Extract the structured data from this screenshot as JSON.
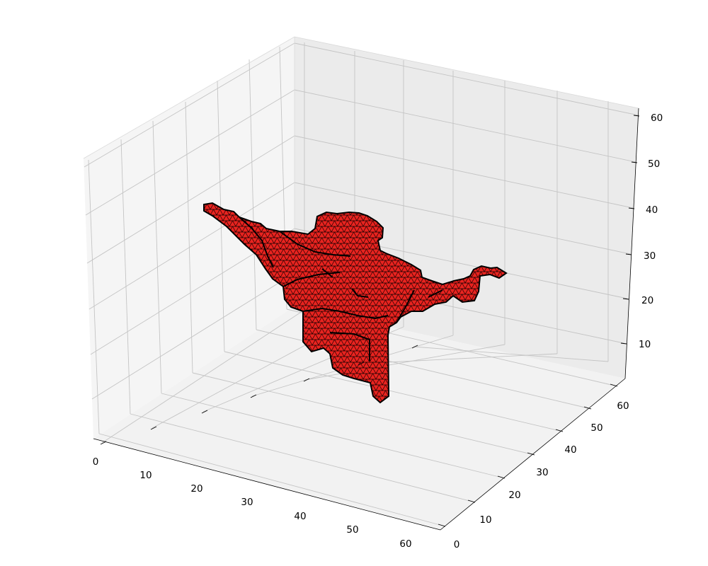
{
  "chart_data": {
    "type": "surface3d",
    "title": "",
    "xlabel": "",
    "ylabel": "",
    "zlabel": "",
    "xlim": [
      0,
      64
    ],
    "ylim": [
      0,
      64
    ],
    "zlim": [
      2,
      62
    ],
    "x_ticks": [
      "0",
      "10",
      "20",
      "30",
      "40",
      "50",
      "60"
    ],
    "y_ticks": [
      "0",
      "10",
      "20",
      "30",
      "40",
      "50",
      "60"
    ],
    "z_ticks": [
      "10",
      "20",
      "30",
      "40",
      "50",
      "60"
    ],
    "grid": true,
    "pane_color": "#f2f2f2",
    "surface_facecolor": "#e8231f",
    "surface_edgecolor": "#000000",
    "surface_description": "Triangulated isosurface mesh (marching-cubes style), red faces with black edges"
  }
}
